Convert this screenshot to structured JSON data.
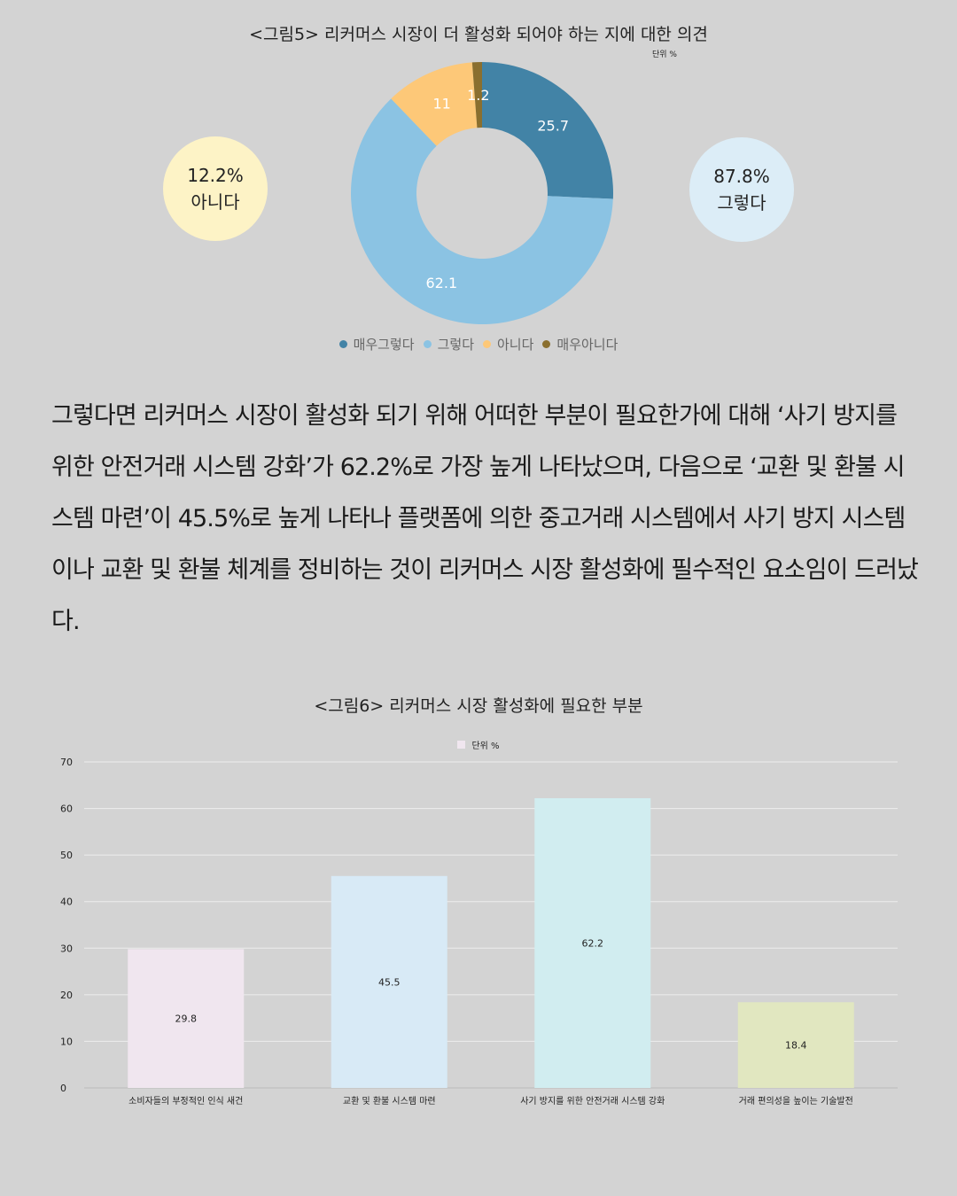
{
  "figure5": {
    "title": "<그림5> 리커머스 시장이 더 활성화 되어야 하는 지에 대한 의견",
    "unit": "단위 %",
    "left_bubble": {
      "value": "12.2%",
      "label": "아니다",
      "color": "#fdf3c6"
    },
    "right_bubble": {
      "value": "87.8%",
      "label": "그렇다",
      "color": "#dcedf7"
    }
  },
  "body_text": "그렇다면 리커머스 시장이 활성화 되기 위해 어떠한 부분이 필요한가에 대해 ‘사기 방지를 위한 안전거래 시스템 강화’가 62.2%로 가장 높게 나타났으며, 다음으로 ‘교환 및 환불 시스템 마련’이 45.5%로 높게 나타나 플랫폼에 의한 중고거래 시스템에서 사기 방지 시스템이나 교환 및 환불 체계를 정비하는 것이 리커머스 시장 활성화에 필수적인 요소임이 드러났다.",
  "figure6": {
    "title": "<그림6> 리커머스 시장 활성화에 필요한 부분",
    "legend": "단위 %"
  },
  "chart_data": [
    {
      "type": "pie",
      "donut": true,
      "labels": [
        "매우그렇다",
        "그렇다",
        "아니다",
        "매우아니다"
      ],
      "values": [
        25.7,
        62.1,
        11,
        1.2
      ],
      "value_labels": [
        "25.7",
        "62.1",
        "11",
        "1.2"
      ],
      "colors": [
        "#4283a6",
        "#8bc3e3",
        "#fdc878",
        "#8a6f2f"
      ],
      "legend_position": "bottom"
    },
    {
      "type": "bar",
      "categories": [
        "소비자들의 부정적인 인식 새건",
        "교환 및 환불 시스템 마련",
        "사기 방지를 위한 안전거래 시스템 강화",
        "거래 편의성을 높이는 기술발전"
      ],
      "values": [
        29.8,
        45.5,
        62.2,
        18.4
      ],
      "value_labels": [
        "29.8",
        "45.5",
        "62.2",
        "18.4"
      ],
      "colors": [
        "#f0e6ef",
        "#d8eaf6",
        "#d1edf0",
        "#e1e7c0"
      ],
      "ylim": [
        0,
        70
      ],
      "yticks": [
        0,
        10,
        20,
        30,
        40,
        50,
        60,
        70
      ],
      "grid": true
    }
  ]
}
